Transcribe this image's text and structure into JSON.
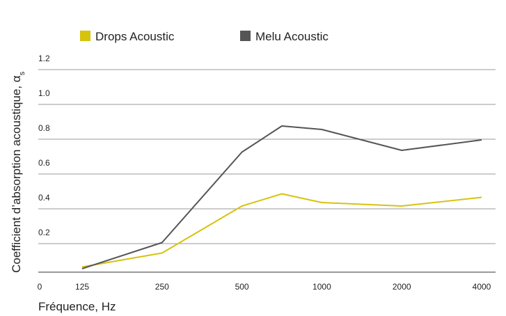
{
  "chart_data": {
    "type": "line",
    "title": "",
    "xlabel": "Fréquence, Hz",
    "ylabel": "Coefficient d’absorption acoustique, α",
    "ylabel_subscript": "s",
    "x_tick_labels": [
      "0",
      "125",
      "250",
      "500",
      "1000",
      "2000",
      "4000"
    ],
    "categories": [
      "125",
      "250",
      "500",
      "1000",
      "2000",
      "4000"
    ],
    "y_tick_labels": [
      "0.2",
      "0.4",
      "0.6",
      "0.8",
      "1.0",
      "1.2"
    ],
    "y_ticks": [
      0.2,
      0.4,
      0.6,
      0.8,
      1.0,
      1.2
    ],
    "ylim": [
      0,
      1.2
    ],
    "grid": true,
    "legend_position": "top-left",
    "series": [
      {
        "name": "Drops Acoustic",
        "color": "#d6c30e",
        "x": [
          125,
          250,
          500,
          707,
          1000,
          2000,
          4000
        ],
        "values": [
          0.03,
          0.11,
          0.38,
          0.45,
          0.4,
          0.38,
          0.43
        ]
      },
      {
        "name": "Melu Acoustic",
        "color": "#555555",
        "x": [
          125,
          250,
          500,
          707,
          1000,
          2000,
          4000
        ],
        "values": [
          0.02,
          0.17,
          0.69,
          0.84,
          0.82,
          0.7,
          0.76
        ]
      }
    ]
  }
}
